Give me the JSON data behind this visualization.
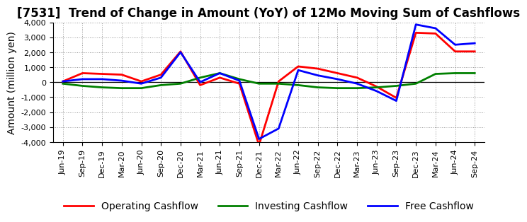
{
  "title": "[7531]  Trend of Change in Amount (YoY) of 12Mo Moving Sum of Cashflows",
  "ylabel": "Amount (million yen)",
  "x_labels": [
    "Jun-19",
    "Sep-19",
    "Dec-19",
    "Mar-20",
    "Jun-20",
    "Sep-20",
    "Dec-20",
    "Mar-21",
    "Jun-21",
    "Sep-21",
    "Dec-21",
    "Mar-22",
    "Jun-22",
    "Sep-22",
    "Dec-22",
    "Mar-23",
    "Jun-23",
    "Sep-23",
    "Dec-23",
    "Mar-24",
    "Jun-24",
    "Sep-24"
  ],
  "operating": [
    50,
    600,
    550,
    500,
    50,
    500,
    2050,
    -200,
    300,
    -100,
    -4200,
    50,
    1050,
    900,
    600,
    300,
    -300,
    -1050,
    3300,
    3250,
    2050,
    2050
  ],
  "investing": [
    -100,
    -250,
    -350,
    -400,
    -400,
    -200,
    -100,
    300,
    600,
    200,
    -100,
    -100,
    -200,
    -350,
    -400,
    -400,
    -350,
    -250,
    -100,
    550,
    600,
    600
  ],
  "free": [
    50,
    200,
    200,
    100,
    -100,
    300,
    2000,
    0,
    600,
    100,
    -3800,
    -3100,
    800,
    450,
    200,
    -100,
    -600,
    -1250,
    3850,
    3600,
    2500,
    2600
  ],
  "operating_color": "#ff0000",
  "investing_color": "#008000",
  "free_color": "#0000ff",
  "ylim": [
    -4000,
    4000
  ],
  "yticks": [
    -4000,
    -3000,
    -2000,
    -1000,
    0,
    1000,
    2000,
    3000,
    4000
  ],
  "background_color": "#ffffff",
  "grid_color": "#999999",
  "title_fontsize": 12,
  "axis_fontsize": 10,
  "legend_fontsize": 10,
  "tick_fontsize": 8
}
